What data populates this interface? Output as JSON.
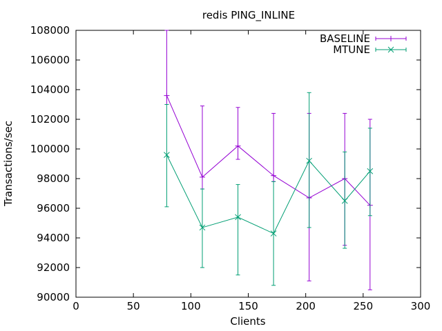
{
  "chart_data": {
    "type": "line",
    "title": "redis PING_INLINE",
    "xlabel": "Clients",
    "ylabel": "Transactions/sec",
    "xlim": [
      0,
      300
    ],
    "ylim": [
      90000,
      108000
    ],
    "xticks": [
      0,
      50,
      100,
      150,
      200,
      250,
      300
    ],
    "yticks": [
      90000,
      92000,
      94000,
      96000,
      98000,
      100000,
      102000,
      104000,
      106000,
      108000
    ],
    "grid": false,
    "legend_position": "top-right",
    "series": [
      {
        "name": "BASELINE",
        "color": "#9400d3",
        "marker": "plus",
        "points": [
          {
            "x": 79,
            "y": 103600,
            "ylow": 103000,
            "yhigh": 108000
          },
          {
            "x": 110,
            "y": 98100,
            "ylow": 97300,
            "yhigh": 102900
          },
          {
            "x": 141,
            "y": 100200,
            "ylow": 99300,
            "yhigh": 102800
          },
          {
            "x": 172,
            "y": 98200,
            "ylow": 97800,
            "yhigh": 102400
          },
          {
            "x": 203,
            "y": 96700,
            "ylow": 91100,
            "yhigh": 102400
          },
          {
            "x": 234,
            "y": 98000,
            "ylow": 93500,
            "yhigh": 102400
          },
          {
            "x": 256,
            "y": 96200,
            "ylow": 90500,
            "yhigh": 102000
          }
        ]
      },
      {
        "name": "MTUNE",
        "color": "#009e73",
        "marker": "cross",
        "points": [
          {
            "x": 79,
            "y": 99600,
            "ylow": 96100,
            "yhigh": 103000
          },
          {
            "x": 110,
            "y": 94700,
            "ylow": 92000,
            "yhigh": 97300
          },
          {
            "x": 141,
            "y": 95400,
            "ylow": 91500,
            "yhigh": 97600
          },
          {
            "x": 172,
            "y": 94300,
            "ylow": 90800,
            "yhigh": 97800
          },
          {
            "x": 203,
            "y": 99200,
            "ylow": 94700,
            "yhigh": 103800
          },
          {
            "x": 234,
            "y": 96500,
            "ylow": 93300,
            "yhigh": 99800
          },
          {
            "x": 256,
            "y": 98500,
            "ylow": 95500,
            "yhigh": 101400
          }
        ]
      }
    ]
  }
}
